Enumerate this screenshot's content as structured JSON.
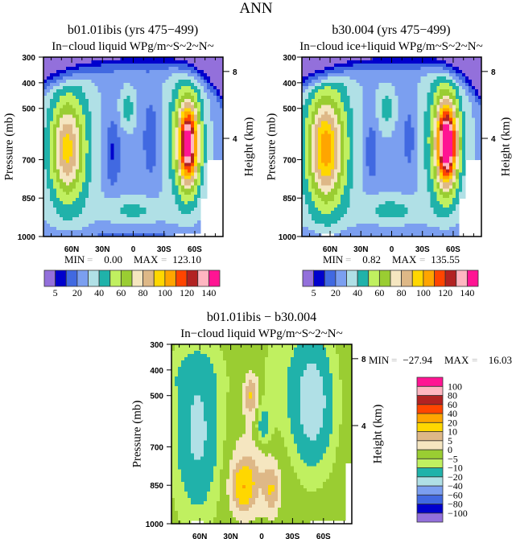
{
  "page_title": "ANN",
  "labels": {
    "min": "MIN",
    "max": "MAX",
    "eq": "="
  },
  "chart_data": [
    {
      "type": "heatmap",
      "title": "b01.01ibis (yrs 475−499)",
      "subtitle": "In−cloud liquid WPg/m~S~2~N~",
      "ylabel": "Pressure (mb)",
      "y2label": "Height (km)",
      "xticks": [
        "60N",
        "30N",
        "0",
        "30S",
        "60S"
      ],
      "xtick_values": [
        60,
        30,
        0,
        -30,
        -60
      ],
      "xlim": [
        87.5,
        -87.5
      ],
      "yticks": [
        "300",
        "400",
        "500",
        "700",
        "850",
        "1000"
      ],
      "ytick_values": [
        300,
        400,
        500,
        700,
        850,
        1000
      ],
      "ylim": [
        300,
        1000
      ],
      "y2ticks": [
        "8",
        "4"
      ],
      "y2tick_pressures": [
        356,
        617
      ],
      "min_value": "0.00",
      "max_value": "123.10",
      "levels": [
        5,
        10,
        20,
        30,
        40,
        50,
        60,
        70,
        80,
        90,
        100,
        110,
        120,
        130,
        140
      ],
      "colors": [
        "#9370DB",
        "#0000CD",
        "#4169E1",
        "#7B9FF0",
        "#B0E0E6",
        "#20B2AA",
        "#C0F060",
        "#9ACD32",
        "#F5E6C0",
        "#DEB887",
        "#FFD700",
        "#FFA500",
        "#FF4500",
        "#B22222",
        "#FFB6C1",
        "#FF1493"
      ],
      "colorbar_labels": [
        "5",
        "20",
        "40",
        "60",
        "80",
        "100",
        "120",
        "140"
      ],
      "field_model": {
        "base": 25,
        "gaussians": [
          [
            -54,
            640,
            100,
            7,
            110
          ],
          [
            -50,
            620,
            30,
            14,
            200
          ],
          [
            65,
            660,
            40,
            10,
            120
          ],
          [
            62,
            650,
            30,
            18,
            220
          ],
          [
            20,
            670,
            -18,
            5,
            90
          ],
          [
            -18,
            620,
            -12,
            6,
            120
          ],
          [
            5,
            500,
            20,
            6,
            60
          ],
          [
            0,
            900,
            18,
            20,
            40
          ],
          [
            0,
            1000,
            -8,
            200,
            30
          ]
        ],
        "taper": {
          "n0": 330,
          "nk": 85,
          "s0": 330,
          "sk": 160,
          "scale": 18
        },
        "missing": [
          [
            -90,
            -72,
            700,
            1000
          ],
          [
            -90,
            -65,
            850,
            1000
          ],
          [
            -65,
            -40,
            982,
            1000
          ]
        ]
      }
    },
    {
      "type": "heatmap",
      "title": "b30.004 (yrs 475−499)",
      "subtitle": "In−cloud ice+liquid WPg/m~S~2~N~",
      "ylabel": "Pressure (mb)",
      "y2label": "Height (km)",
      "xticks": [
        "60N",
        "30N",
        "0",
        "30S",
        "60S"
      ],
      "xtick_values": [
        60,
        30,
        0,
        -30,
        -60
      ],
      "xlim": [
        87.5,
        -87.5
      ],
      "yticks": [
        "300",
        "400",
        "500",
        "700",
        "850",
        "1000"
      ],
      "ytick_values": [
        300,
        400,
        500,
        700,
        850,
        1000
      ],
      "ylim": [
        300,
        1000
      ],
      "y2ticks": [
        "8",
        "4"
      ],
      "y2tick_pressures": [
        356,
        617
      ],
      "min_value": "0.82",
      "max_value": "135.55",
      "levels": [
        5,
        10,
        20,
        30,
        40,
        50,
        60,
        70,
        80,
        90,
        100,
        110,
        120,
        130,
        140
      ],
      "colors": [
        "#9370DB",
        "#0000CD",
        "#4169E1",
        "#7B9FF0",
        "#B0E0E6",
        "#20B2AA",
        "#C0F060",
        "#9ACD32",
        "#F5E6C0",
        "#DEB887",
        "#FFD700",
        "#FFA500",
        "#FF4500",
        "#B22222",
        "#FFB6C1",
        "#FF1493"
      ],
      "colorbar_labels": [
        "5",
        "20",
        "40",
        "60",
        "80",
        "100",
        "120",
        "140"
      ],
      "field_model": {
        "base": 27,
        "gaussians": [
          [
            -54,
            640,
            110,
            7,
            110
          ],
          [
            -50,
            620,
            32,
            14,
            200
          ],
          [
            65,
            660,
            48,
            11,
            130
          ],
          [
            62,
            650,
            33,
            18,
            220
          ],
          [
            20,
            670,
            -16,
            5,
            90
          ],
          [
            -18,
            620,
            -12,
            6,
            120
          ],
          [
            5,
            500,
            18,
            6,
            60
          ],
          [
            0,
            900,
            18,
            20,
            40
          ],
          [
            0,
            1000,
            -8,
            200,
            30
          ]
        ],
        "taper": {
          "n0": 330,
          "nk": 85,
          "s0": 330,
          "sk": 160,
          "scale": 18
        },
        "missing": [
          [
            -90,
            -72,
            700,
            1000
          ],
          [
            -90,
            -65,
            850,
            1000
          ],
          [
            55,
            68,
            985,
            1000
          ]
        ]
      }
    },
    {
      "type": "heatmap",
      "title": "b01.01ibis − b30.004",
      "subtitle": "In−cloud liquid WPg/m~S~2~N~",
      "ylabel": "Pressure (mb)",
      "y2label": "Height (km)",
      "xticks": [
        "60N",
        "30N",
        "0",
        "30S",
        "60S"
      ],
      "xtick_values": [
        60,
        30,
        0,
        -30,
        -60
      ],
      "xlim": [
        87.5,
        -87.5
      ],
      "yticks": [
        "300",
        "400",
        "500",
        "700",
        "850",
        "1000"
      ],
      "ytick_values": [
        300,
        400,
        500,
        700,
        850,
        1000
      ],
      "ylim": [
        300,
        1000
      ],
      "y2ticks": [
        "8",
        "4"
      ],
      "y2tick_pressures": [
        356,
        617
      ],
      "min_value": "−27.94",
      "max_value": "16.03",
      "levels": [
        -100,
        -80,
        -60,
        -40,
        -20,
        -10,
        -5,
        0,
        5,
        10,
        20,
        40,
        60,
        80,
        100
      ],
      "colors": [
        "#9370DB",
        "#0000CD",
        "#4169E1",
        "#7B9FF0",
        "#B0E0E6",
        "#20B2AA",
        "#C0F060",
        "#9ACD32",
        "#F5E6C0",
        "#DEB887",
        "#FFD700",
        "#FFA500",
        "#FF4500",
        "#B22222",
        "#FFB6C1",
        "#FF1493"
      ],
      "colorbar_labels": [
        "−100",
        "−80",
        "−60",
        "−40",
        "−20",
        "−10",
        "−5",
        "0",
        "5",
        "10",
        "20",
        "40",
        "60",
        "80",
        "100"
      ],
      "field_model": {
        "base": -3,
        "gaussians": [
          [
            62,
            640,
            -20,
            14,
            200
          ],
          [
            -50,
            530,
            -24,
            12,
            150
          ],
          [
            10,
            500,
            14,
            5,
            60
          ],
          [
            -2,
            620,
            -12,
            5,
            60
          ],
          [
            18,
            860,
            17,
            7,
            60
          ],
          [
            8,
            800,
            8,
            18,
            120
          ],
          [
            -10,
            870,
            10,
            5,
            60
          ],
          [
            -30,
            450,
            -5,
            20,
            200
          ],
          [
            70,
            420,
            -4,
            20,
            60
          ]
        ],
        "missing": [
          [
            -90,
            -80,
            760,
            1000
          ],
          [
            -88,
            -47,
            990,
            1000
          ],
          [
            55,
            70,
            992,
            1000
          ]
        ]
      }
    }
  ]
}
